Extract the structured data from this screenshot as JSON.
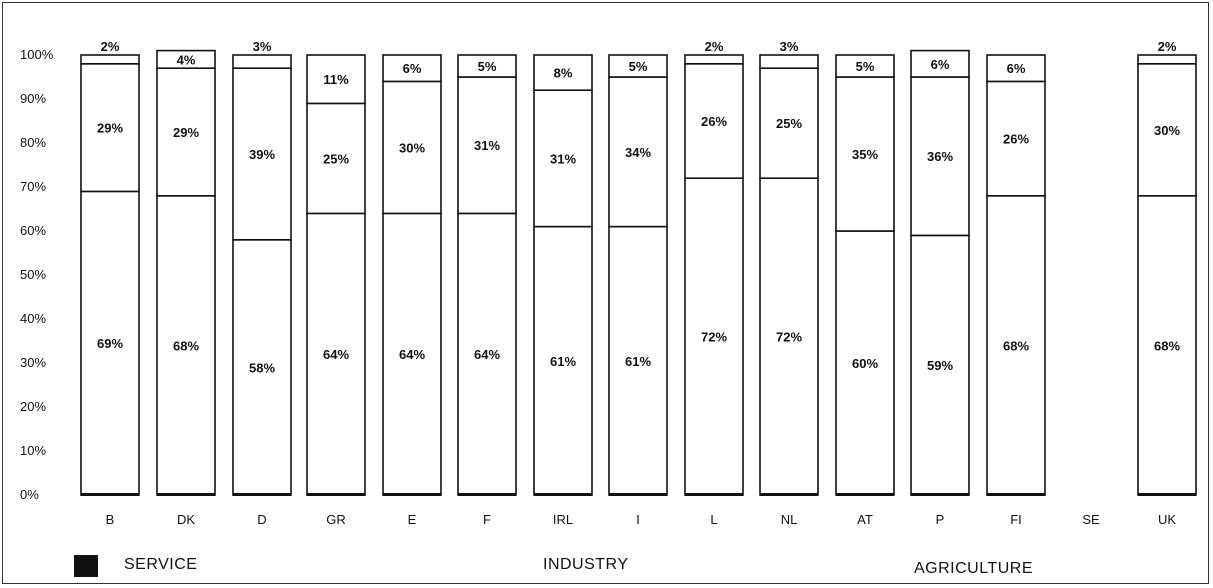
{
  "chart_data": {
    "type": "bar",
    "stacked": true,
    "percent": true,
    "categories": [
      "B",
      "DK",
      "D",
      "GR",
      "E",
      "F",
      "IRL",
      "I",
      "L",
      "NL",
      "AT",
      "P",
      "FI",
      "SE",
      "UK"
    ],
    "series": [
      {
        "name": "Service",
        "values": [
          69,
          68,
          58,
          64,
          64,
          64,
          61,
          61,
          72,
          72,
          60,
          59,
          68,
          null,
          68
        ],
        "labels": [
          "69%",
          "68%",
          "58%",
          "64%",
          "64%",
          "64%",
          "61%",
          "61%",
          "72%",
          "72%",
          "60%",
          "59%",
          "68%",
          "",
          "68%"
        ]
      },
      {
        "name": "Industry",
        "values": [
          29,
          29,
          39,
          25,
          30,
          31,
          31,
          34,
          26,
          25,
          35,
          36,
          26,
          null,
          30
        ],
        "labels": [
          "29%",
          "29%",
          "39%",
          "25%",
          "30%",
          "31%",
          "31%",
          "34%",
          "26%",
          "25%",
          "35%",
          "36%",
          "26%",
          "",
          "30%"
        ]
      },
      {
        "name": "Agriculture",
        "values": [
          2,
          4,
          3,
          11,
          6,
          5,
          8,
          5,
          2,
          3,
          5,
          6,
          6,
          null,
          2
        ],
        "labels": [
          "2%",
          "4%",
          "3%",
          "11%",
          "6%",
          "5%",
          "8%",
          "5%",
          "2%",
          "3%",
          "5%",
          "6%",
          "6%",
          "",
          "2%"
        ]
      }
    ],
    "ylim": [
      0,
      100
    ],
    "yticks": [
      "0%",
      "10%",
      "20%",
      "30%",
      "40%",
      "50%",
      "60%",
      "70%",
      "80%",
      "90%",
      "100%"
    ],
    "grid": false,
    "legend_position": "bottom",
    "colors": {
      "service_swatch": "#111111",
      "bar_fill": "#ffffff",
      "bar_stroke": "#111111"
    }
  },
  "legend": {
    "service": "Service",
    "industry": "Industry",
    "agriculture": "Agriculture"
  }
}
